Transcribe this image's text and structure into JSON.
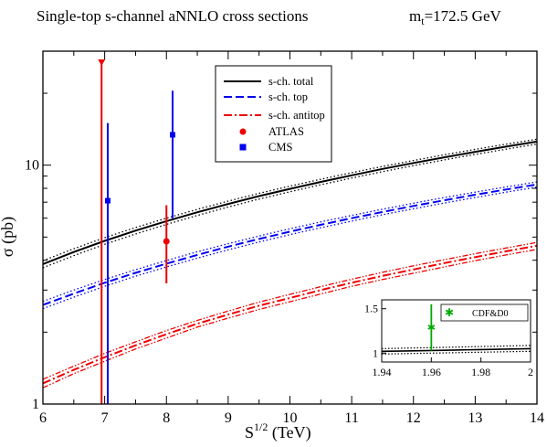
{
  "header": {
    "title": "Single-top s-channel aNNLO cross sections",
    "mass_label": "m",
    "mass_sub": "t",
    "mass_value": "=172.5 GeV"
  },
  "chart_data": [
    {
      "type": "line",
      "xlabel_main": "S",
      "xlabel_sup": "1/2",
      "xlabel_unit": " (TeV)",
      "ylabel": "σ (pb)",
      "y_scale": "log",
      "xlim": [
        6,
        14
      ],
      "ylim": [
        1,
        30
      ],
      "x_ticks": [
        6,
        7,
        8,
        9,
        10,
        11,
        12,
        13,
        14
      ],
      "y_tick_labels": [
        1,
        10
      ],
      "grid": false,
      "legend_position": "top-center",
      "x": [
        6,
        6.5,
        7,
        7.5,
        8,
        8.5,
        9,
        9.5,
        10,
        10.5,
        11,
        11.5,
        12,
        12.5,
        13,
        13.5,
        14
      ],
      "series": [
        {
          "name": "s-ch. total",
          "color": "#000000",
          "style": "solid",
          "band_style": "dotted",
          "values": [
            3.85,
            4.33,
            4.82,
            5.32,
            5.83,
            6.35,
            6.88,
            7.42,
            7.96,
            8.51,
            9.07,
            9.64,
            10.21,
            10.79,
            11.37,
            11.96,
            12.55
          ],
          "band_upper": [
            3.98,
            4.47,
            4.97,
            5.48,
            6.0,
            6.53,
            7.07,
            7.62,
            8.17,
            8.73,
            9.3,
            9.88,
            10.46,
            11.05,
            11.64,
            12.24,
            12.84
          ],
          "band_lower": [
            3.72,
            4.18,
            4.66,
            5.15,
            5.65,
            6.16,
            6.68,
            7.21,
            7.74,
            8.28,
            8.83,
            9.39,
            9.95,
            10.52,
            11.09,
            11.67,
            12.26
          ]
        },
        {
          "name": "s-ch. top",
          "color": "#0000ee",
          "style": "dashed",
          "band_style": "dotted",
          "values": [
            2.6,
            2.9,
            3.22,
            3.54,
            3.87,
            4.21,
            4.56,
            4.91,
            5.27,
            5.63,
            6.0,
            6.37,
            6.75,
            7.13,
            7.52,
            7.91,
            8.3
          ],
          "band_upper": [
            2.69,
            3.0,
            3.32,
            3.65,
            3.99,
            4.34,
            4.69,
            5.05,
            5.42,
            5.79,
            6.16,
            6.54,
            6.93,
            7.32,
            7.71,
            8.11,
            8.51
          ],
          "band_lower": [
            2.51,
            2.8,
            3.11,
            3.43,
            3.75,
            4.08,
            4.42,
            4.77,
            5.12,
            5.47,
            5.83,
            6.2,
            6.57,
            6.94,
            7.32,
            7.71,
            8.09
          ]
        },
        {
          "name": "s-ch. antitop",
          "color": "#ee0000",
          "style": "dashdot",
          "band_style": "dashdotdot",
          "values": [
            1.22,
            1.39,
            1.57,
            1.76,
            1.96,
            2.17,
            2.37,
            2.58,
            2.78,
            3.0,
            3.22,
            3.44,
            3.66,
            3.89,
            4.12,
            4.36,
            4.6
          ],
          "band_upper": [
            1.27,
            1.44,
            1.63,
            1.82,
            2.03,
            2.24,
            2.45,
            2.67,
            2.88,
            3.1,
            3.33,
            3.56,
            3.79,
            4.02,
            4.26,
            4.5,
            4.75
          ],
          "band_lower": [
            1.17,
            1.34,
            1.51,
            1.7,
            1.89,
            2.1,
            2.29,
            2.49,
            2.68,
            2.89,
            3.11,
            3.32,
            3.53,
            3.75,
            3.98,
            4.21,
            4.44
          ]
        }
      ],
      "measurements": [
        {
          "name": "ATLAS",
          "marker": "circle",
          "color": "#ee0000",
          "x": 8.0,
          "y": 4.8,
          "y_low": 3.2,
          "y_high": 6.8
        },
        {
          "name": "",
          "marker": "triangle-down",
          "color": "#ee0000",
          "x": 6.95,
          "y": 27,
          "y_low": 1.0,
          "y_high": 27
        },
        {
          "name": "CMS",
          "marker": "square",
          "color": "#0000ee",
          "x": 7.05,
          "y": 7.1,
          "y_low": 1.0,
          "y_high": 15.0
        },
        {
          "name": "",
          "marker": "square",
          "color": "#0000ee",
          "x": 8.1,
          "y": 13.4,
          "y_low": 6.0,
          "y_high": 20.5
        }
      ]
    },
    {
      "type": "line",
      "position": "inset-bottom-right",
      "xlim": [
        1.94,
        2.0
      ],
      "ylim": [
        0.9,
        1.6
      ],
      "x_ticks": [
        1.94,
        1.96,
        1.98,
        2.0
      ],
      "x_tick_labels": [
        "1.94",
        "1.96",
        "1.98",
        "2"
      ],
      "y_ticks": [
        1.0,
        1.5
      ],
      "y_tick_labels": [
        "1",
        "1.5"
      ],
      "x": [
        1.94,
        1.95,
        1.96,
        1.97,
        1.98,
        1.99,
        2.0
      ],
      "series": [
        {
          "name": "",
          "color": "#000000",
          "style": "solid",
          "values": [
            1.02,
            1.025,
            1.03,
            1.035,
            1.04,
            1.045,
            1.05
          ],
          "band_upper": [
            1.05,
            1.056,
            1.062,
            1.068,
            1.074,
            1.08,
            1.086
          ],
          "band_lower": [
            0.99,
            0.995,
            1.0,
            1.005,
            1.01,
            1.015,
            1.02
          ]
        }
      ],
      "measurements": [
        {
          "name": "CDF&D0",
          "marker": "star",
          "color": "#00aa00",
          "x": 1.96,
          "y": 1.29,
          "y_low": 1.03,
          "y_high": 1.55
        }
      ]
    }
  ]
}
